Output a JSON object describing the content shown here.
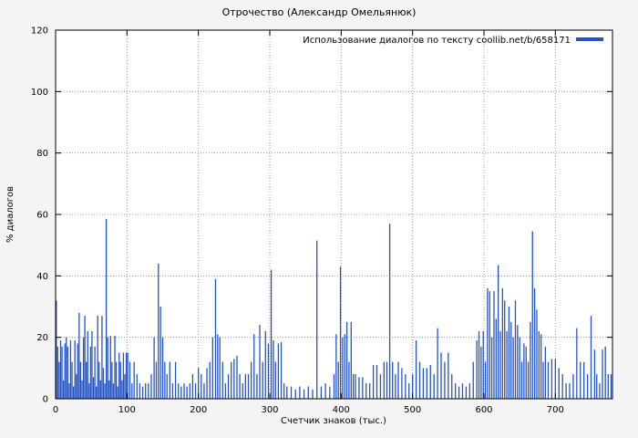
{
  "chart_data": {
    "type": "bar",
    "style": "impulses",
    "title": "Отрочество (Александр Омельянюк)",
    "legend": "Использование диалогов по тексту coollib.net/b/658171",
    "xlabel": "Счетчик знаков (тыс.)",
    "ylabel": "% диалогов",
    "xlim": [
      0,
      780
    ],
    "ylim": [
      0,
      120
    ],
    "xticks": [
      0,
      100,
      200,
      300,
      400,
      500,
      600,
      700
    ],
    "yticks": [
      0,
      20,
      40,
      60,
      80,
      100,
      120
    ],
    "grid": true,
    "legend_position": "top-right",
    "accent_color": "#2453c4",
    "background_color": "#f4f4f4",
    "plot_background": "#ffffff",
    "points": [
      [
        1,
        32
      ],
      [
        3,
        17
      ],
      [
        5,
        12
      ],
      [
        7,
        19
      ],
      [
        9,
        17
      ],
      [
        11,
        6
      ],
      [
        13,
        18
      ],
      [
        15,
        20
      ],
      [
        17,
        17
      ],
      [
        19,
        5
      ],
      [
        21,
        19
      ],
      [
        23,
        12
      ],
      [
        25,
        4
      ],
      [
        27,
        19
      ],
      [
        29,
        8
      ],
      [
        31,
        18
      ],
      [
        33,
        28
      ],
      [
        35,
        12
      ],
      [
        37,
        6
      ],
      [
        39,
        20
      ],
      [
        41,
        27
      ],
      [
        43,
        12
      ],
      [
        45,
        22
      ],
      [
        47,
        5
      ],
      [
        49,
        17
      ],
      [
        51,
        22
      ],
      [
        53,
        7
      ],
      [
        55,
        17
      ],
      [
        57,
        4
      ],
      [
        59,
        27
      ],
      [
        61,
        12
      ],
      [
        63,
        6
      ],
      [
        65,
        27
      ],
      [
        67,
        10
      ],
      [
        69,
        5
      ],
      [
        71,
        58.5
      ],
      [
        73,
        20
      ],
      [
        75,
        6
      ],
      [
        77,
        20.5
      ],
      [
        79,
        12
      ],
      [
        81,
        5
      ],
      [
        83,
        20.5
      ],
      [
        85,
        12
      ],
      [
        87,
        4
      ],
      [
        89,
        15
      ],
      [
        91,
        12
      ],
      [
        93,
        6
      ],
      [
        95,
        15
      ],
      [
        97,
        8
      ],
      [
        99,
        15
      ],
      [
        101,
        15
      ],
      [
        104,
        12
      ],
      [
        107,
        5
      ],
      [
        110,
        12
      ],
      [
        114,
        8
      ],
      [
        118,
        5
      ],
      [
        122,
        4
      ],
      [
        126,
        5
      ],
      [
        130,
        5
      ],
      [
        134,
        8
      ],
      [
        138,
        20
      ],
      [
        141,
        12
      ],
      [
        144,
        44
      ],
      [
        147,
        30
      ],
      [
        150,
        20
      ],
      [
        153,
        12
      ],
      [
        156,
        8
      ],
      [
        160,
        12
      ],
      [
        164,
        5
      ],
      [
        168,
        12
      ],
      [
        172,
        5
      ],
      [
        176,
        4
      ],
      [
        180,
        5
      ],
      [
        184,
        4
      ],
      [
        188,
        5
      ],
      [
        192,
        8
      ],
      [
        196,
        5
      ],
      [
        200,
        10
      ],
      [
        204,
        8
      ],
      [
        208,
        5
      ],
      [
        212,
        10
      ],
      [
        216,
        12
      ],
      [
        220,
        20
      ],
      [
        224,
        39
      ],
      [
        227,
        21
      ],
      [
        230,
        20
      ],
      [
        234,
        12
      ],
      [
        238,
        5
      ],
      [
        242,
        8
      ],
      [
        246,
        12
      ],
      [
        250,
        13
      ],
      [
        254,
        14
      ],
      [
        258,
        8
      ],
      [
        262,
        5
      ],
      [
        266,
        8
      ],
      [
        270,
        8
      ],
      [
        274,
        12
      ],
      [
        278,
        21
      ],
      [
        282,
        8
      ],
      [
        286,
        24
      ],
      [
        290,
        12
      ],
      [
        294,
        22
      ],
      [
        298,
        18
      ],
      [
        302,
        42
      ],
      [
        305,
        19
      ],
      [
        308,
        12
      ],
      [
        312,
        18
      ],
      [
        316,
        18.5
      ],
      [
        320,
        5
      ],
      [
        324,
        4
      ],
      [
        330,
        4
      ],
      [
        336,
        3
      ],
      [
        342,
        4
      ],
      [
        348,
        3
      ],
      [
        354,
        4
      ],
      [
        360,
        3
      ],
      [
        366,
        51.5
      ],
      [
        372,
        4
      ],
      [
        378,
        5
      ],
      [
        384,
        4
      ],
      [
        390,
        8
      ],
      [
        393,
        21
      ],
      [
        396,
        12
      ],
      [
        399,
        43
      ],
      [
        402,
        20
      ],
      [
        405,
        21
      ],
      [
        408,
        25
      ],
      [
        411,
        12
      ],
      [
        414,
        25
      ],
      [
        417,
        8
      ],
      [
        420,
        8
      ],
      [
        425,
        7
      ],
      [
        430,
        7
      ],
      [
        435,
        5
      ],
      [
        440,
        5
      ],
      [
        445,
        11
      ],
      [
        450,
        11
      ],
      [
        455,
        8
      ],
      [
        460,
        12
      ],
      [
        464,
        12
      ],
      [
        468,
        57
      ],
      [
        472,
        12
      ],
      [
        476,
        8
      ],
      [
        480,
        12
      ],
      [
        485,
        10
      ],
      [
        490,
        8
      ],
      [
        495,
        5
      ],
      [
        500,
        8
      ],
      [
        505,
        19
      ],
      [
        510,
        12
      ],
      [
        515,
        10
      ],
      [
        520,
        10
      ],
      [
        525,
        11
      ],
      [
        530,
        8
      ],
      [
        535,
        23
      ],
      [
        540,
        15
      ],
      [
        545,
        12
      ],
      [
        550,
        15
      ],
      [
        555,
        8
      ],
      [
        560,
        5
      ],
      [
        565,
        4
      ],
      [
        570,
        5
      ],
      [
        575,
        4
      ],
      [
        580,
        5
      ],
      [
        585,
        12
      ],
      [
        590,
        19
      ],
      [
        593,
        22
      ],
      [
        596,
        17
      ],
      [
        599,
        22
      ],
      [
        602,
        12
      ],
      [
        605,
        36
      ],
      [
        608,
        35
      ],
      [
        611,
        20
      ],
      [
        614,
        35
      ],
      [
        617,
        26
      ],
      [
        620,
        43.5
      ],
      [
        623,
        22
      ],
      [
        626,
        36
      ],
      [
        629,
        32
      ],
      [
        632,
        22
      ],
      [
        635,
        30
      ],
      [
        638,
        25
      ],
      [
        641,
        20
      ],
      [
        644,
        32
      ],
      [
        647,
        24
      ],
      [
        650,
        20
      ],
      [
        653,
        12
      ],
      [
        656,
        18
      ],
      [
        659,
        17
      ],
      [
        662,
        12
      ],
      [
        665,
        25
      ],
      [
        668,
        54.5
      ],
      [
        671,
        36
      ],
      [
        674,
        29
      ],
      [
        677,
        22
      ],
      [
        680,
        21
      ],
      [
        683,
        12
      ],
      [
        686,
        17
      ],
      [
        690,
        12
      ],
      [
        695,
        13
      ],
      [
        700,
        13
      ],
      [
        705,
        10
      ],
      [
        710,
        8
      ],
      [
        715,
        5
      ],
      [
        720,
        5
      ],
      [
        725,
        8
      ],
      [
        730,
        23
      ],
      [
        735,
        12
      ],
      [
        740,
        12
      ],
      [
        745,
        8
      ],
      [
        750,
        27
      ],
      [
        755,
        16
      ],
      [
        758,
        8
      ],
      [
        762,
        5
      ],
      [
        766,
        16
      ],
      [
        770,
        17
      ],
      [
        774,
        8
      ],
      [
        778,
        8
      ]
    ]
  }
}
